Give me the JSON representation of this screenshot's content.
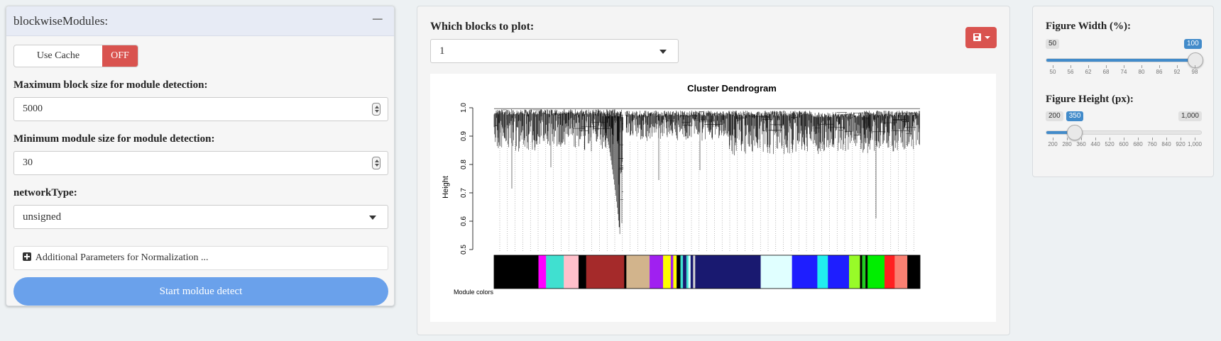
{
  "left": {
    "title": "blockwiseModules:",
    "collapse_symbol": "−",
    "cache": {
      "label": "Use Cache",
      "state": "OFF"
    },
    "max_block": {
      "label": "Maximum block size for module detection:",
      "value": "5000"
    },
    "min_module": {
      "label": "Minimum module size for module detection:",
      "value": "30"
    },
    "network": {
      "label": "networkType:",
      "value": "unsigned"
    },
    "additional": "Additional Parameters for Normalization ...",
    "start_button": "Start moldue detect"
  },
  "middle": {
    "blocks_label": "Which blocks to plot:",
    "blocks_value": "1"
  },
  "chart_data": {
    "type": "dendrogram",
    "title": "Cluster Dendrogram",
    "ylabel": "Height",
    "yticks": [
      "0.5",
      "0.6",
      "0.7",
      "0.8",
      "0.9",
      "1.0"
    ],
    "ylim": [
      0.5,
      1.0
    ],
    "color_bar_label": "Module colors",
    "module_colors": [
      {
        "color": "#000000",
        "w": 10.5
      },
      {
        "color": "#ff00ff",
        "w": 1.8
      },
      {
        "color": "#40e0d0",
        "w": 4.2
      },
      {
        "color": "#ffc0cb",
        "w": 3.5
      },
      {
        "color": "#000000",
        "w": 1.8
      },
      {
        "color": "#a52a2a",
        "w": 9.0
      },
      {
        "color": "#000000",
        "w": 0.5
      },
      {
        "color": "#d2b48c",
        "w": 5.5
      },
      {
        "color": "#a020f0",
        "w": 3.2
      },
      {
        "color": "#ffff00",
        "w": 1.8
      },
      {
        "color": "#a020f0",
        "w": 0.6
      },
      {
        "color": "#ffff00",
        "w": 0.8
      },
      {
        "color": "#000000",
        "w": 0.9
      },
      {
        "color": "#40e0d0",
        "w": 0.6
      },
      {
        "color": "#191970",
        "w": 0.8
      },
      {
        "color": "#40e0d0",
        "w": 0.5
      },
      {
        "color": "#e0ffff",
        "w": 0.5
      },
      {
        "color": "#191970",
        "w": 0.6
      },
      {
        "color": "#d3d3d3",
        "w": 0.5
      },
      {
        "color": "#191970",
        "w": 15.5
      },
      {
        "color": "#e0ffff",
        "w": 2.8
      },
      {
        "color": "#e0ffff",
        "w": 4.6
      },
      {
        "color": "#1e1eff",
        "w": 6.0
      },
      {
        "color": "#22eeee",
        "w": 2.5
      },
      {
        "color": "#1e1eff",
        "w": 5.0
      },
      {
        "color": "#98fb28",
        "w": 2.6
      },
      {
        "color": "#000000",
        "w": 0.5
      },
      {
        "color": "#22cc22",
        "w": 0.8
      },
      {
        "color": "#000000",
        "w": 0.5
      },
      {
        "color": "#00ee00",
        "w": 4.0
      },
      {
        "color": "#ff2020",
        "w": 2.4
      },
      {
        "color": "#fa8072",
        "w": 3.0
      },
      {
        "color": "#000000",
        "w": 3.0
      }
    ]
  },
  "right": {
    "width": {
      "label": "Figure Width (%):",
      "min": 50,
      "max": 100,
      "value": 100,
      "min_label": "50",
      "max_label": "100",
      "value_label": "100",
      "ticks": [
        "50",
        "56",
        "62",
        "68",
        "74",
        "80",
        "86",
        "92",
        "98"
      ]
    },
    "height": {
      "label": "Figure Height (px):",
      "min": 200,
      "max": 1000,
      "value": 350,
      "min_label": "200",
      "max_label": "1,000",
      "value_label": "350",
      "ticks": [
        "200",
        "280",
        "360",
        "440",
        "520",
        "600",
        "680",
        "760",
        "840",
        "920",
        "1,000"
      ]
    }
  },
  "colors": {
    "danger": "#d9534f",
    "primary": "#428bca",
    "start_button": "#6aa1eb"
  }
}
